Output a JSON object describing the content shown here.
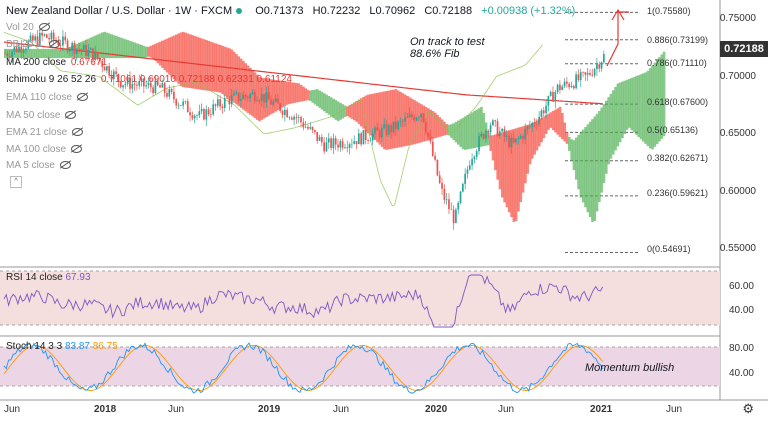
{
  "header": {
    "symbol": "New Zealand Dollar / U.S. Dollar · 1W · FXCM",
    "open": "O0.71373",
    "high": "H0.72232",
    "low": "L0.70962",
    "close": "C0.72188",
    "change": "+0.00938 (+1.32%)"
  },
  "indicators": [
    {
      "label": "Vol 20",
      "value": "",
      "faded": true
    },
    {
      "label": "BB 20 2 ",
      "value": "",
      "faded": true
    },
    {
      "label": "MA 200 close",
      "value": "0.67671",
      "faded": false
    },
    {
      "label": "Ichimoku 9 26 52 26",
      "value": "0.71061  0.69010  0.72188  0.62331  0.61124",
      "faded": false
    },
    {
      "label": "EMA 110 close",
      "value": "",
      "faded": true
    },
    {
      "label": "MA 50 close",
      "value": "",
      "faded": true
    },
    {
      "label": "EMA 21 close",
      "value": "",
      "faded": true
    },
    {
      "label": "MA 100 close",
      "value": "",
      "faded": true
    },
    {
      "label": "MA 5 close",
      "value": "",
      "faded": true
    }
  ],
  "annotation": {
    "line1": "On track to test",
    "line2": "88.6% Fib"
  },
  "momentum": "Momentum bullish",
  "price_badge": "0.72188",
  "fib": [
    {
      "label": "1(0.75580)",
      "price": 0.7558
    },
    {
      "label": "0.886(0.73199)",
      "price": 0.73199
    },
    {
      "label": "0.786(0.71110)",
      "price": 0.7111
    },
    {
      "label": "0.618(0.67600)",
      "price": 0.676
    },
    {
      "label": "0.5(0.65136)",
      "price": 0.65136
    },
    {
      "label": "0.382(0.62671)",
      "price": 0.62671
    },
    {
      "label": "0.236(0.59621)",
      "price": 0.59621
    },
    {
      "label": "0(0.54691)",
      "price": 0.54691
    }
  ],
  "price_axis": [
    "0.75000",
    "0.70000",
    "0.65000",
    "0.60000",
    "0.55000"
  ],
  "rsi": {
    "label": "RSI 14 close",
    "value": "67.93",
    "axis": [
      "60.00",
      "40.00"
    ]
  },
  "stoch": {
    "label": "Stoch 14 3 3",
    "k": "83.87",
    "d": "86.75",
    "axis": [
      "80.00",
      "40.00"
    ]
  },
  "time_axis": [
    "Jun",
    "2018",
    "Jun",
    "2019",
    "Jun",
    "2020",
    "Jun",
    "2021",
    "Jun"
  ],
  "colors": {
    "bull": "#26a69a",
    "bear": "#ef5350",
    "cloud_bull": "#4caf50",
    "cloud_bear": "#f44336",
    "ma200": "#e53935",
    "rsi": "#7e57c2",
    "stoch_k": "#2196f3",
    "stoch_d": "#ff9800"
  }
}
